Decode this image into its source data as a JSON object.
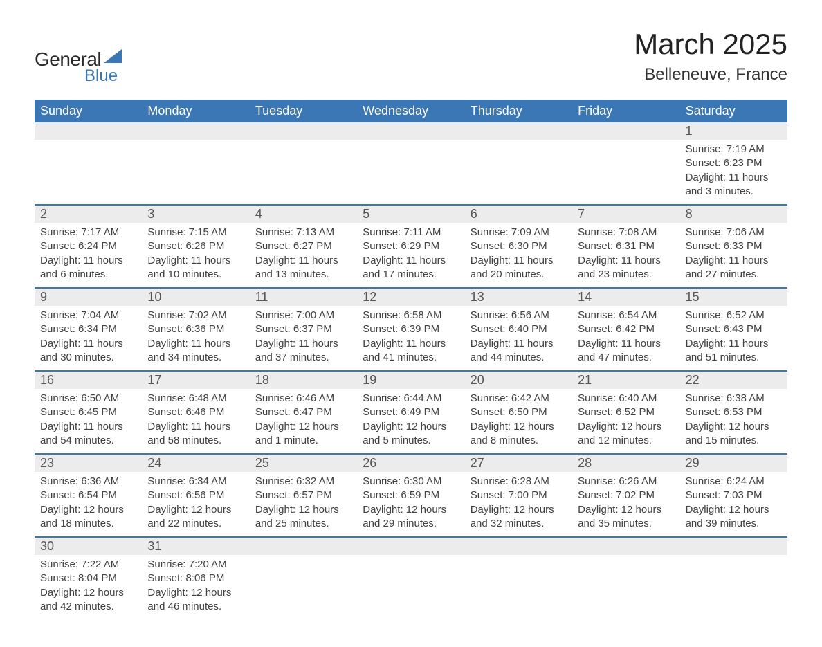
{
  "logo": {
    "general": "General",
    "blue": "Blue"
  },
  "title": "March 2025",
  "location": "Belleneuve, France",
  "colors": {
    "header_bg": "#3b77b5",
    "header_text": "#ffffff",
    "daynum_bg": "#ececec",
    "row_divider": "#3b77b5",
    "body_text": "#404040",
    "logo_blue": "#3b77b5",
    "logo_dark": "#2a2a2a",
    "background": "#ffffff"
  },
  "typography": {
    "title_fontsize": 42,
    "location_fontsize": 24,
    "dow_fontsize": 18,
    "daynum_fontsize": 18,
    "body_fontsize": 15
  },
  "days_of_week": [
    "Sunday",
    "Monday",
    "Tuesday",
    "Wednesday",
    "Thursday",
    "Friday",
    "Saturday"
  ],
  "weeks": [
    [
      {
        "n": "",
        "lines": [
          "",
          "",
          "",
          ""
        ]
      },
      {
        "n": "",
        "lines": [
          "",
          "",
          "",
          ""
        ]
      },
      {
        "n": "",
        "lines": [
          "",
          "",
          "",
          ""
        ]
      },
      {
        "n": "",
        "lines": [
          "",
          "",
          "",
          ""
        ]
      },
      {
        "n": "",
        "lines": [
          "",
          "",
          "",
          ""
        ]
      },
      {
        "n": "",
        "lines": [
          "",
          "",
          "",
          ""
        ]
      },
      {
        "n": "1",
        "lines": [
          "Sunrise: 7:19 AM",
          "Sunset: 6:23 PM",
          "Daylight: 11 hours",
          "and 3 minutes."
        ]
      }
    ],
    [
      {
        "n": "2",
        "lines": [
          "Sunrise: 7:17 AM",
          "Sunset: 6:24 PM",
          "Daylight: 11 hours",
          "and 6 minutes."
        ]
      },
      {
        "n": "3",
        "lines": [
          "Sunrise: 7:15 AM",
          "Sunset: 6:26 PM",
          "Daylight: 11 hours",
          "and 10 minutes."
        ]
      },
      {
        "n": "4",
        "lines": [
          "Sunrise: 7:13 AM",
          "Sunset: 6:27 PM",
          "Daylight: 11 hours",
          "and 13 minutes."
        ]
      },
      {
        "n": "5",
        "lines": [
          "Sunrise: 7:11 AM",
          "Sunset: 6:29 PM",
          "Daylight: 11 hours",
          "and 17 minutes."
        ]
      },
      {
        "n": "6",
        "lines": [
          "Sunrise: 7:09 AM",
          "Sunset: 6:30 PM",
          "Daylight: 11 hours",
          "and 20 minutes."
        ]
      },
      {
        "n": "7",
        "lines": [
          "Sunrise: 7:08 AM",
          "Sunset: 6:31 PM",
          "Daylight: 11 hours",
          "and 23 minutes."
        ]
      },
      {
        "n": "8",
        "lines": [
          "Sunrise: 7:06 AM",
          "Sunset: 6:33 PM",
          "Daylight: 11 hours",
          "and 27 minutes."
        ]
      }
    ],
    [
      {
        "n": "9",
        "lines": [
          "Sunrise: 7:04 AM",
          "Sunset: 6:34 PM",
          "Daylight: 11 hours",
          "and 30 minutes."
        ]
      },
      {
        "n": "10",
        "lines": [
          "Sunrise: 7:02 AM",
          "Sunset: 6:36 PM",
          "Daylight: 11 hours",
          "and 34 minutes."
        ]
      },
      {
        "n": "11",
        "lines": [
          "Sunrise: 7:00 AM",
          "Sunset: 6:37 PM",
          "Daylight: 11 hours",
          "and 37 minutes."
        ]
      },
      {
        "n": "12",
        "lines": [
          "Sunrise: 6:58 AM",
          "Sunset: 6:39 PM",
          "Daylight: 11 hours",
          "and 41 minutes."
        ]
      },
      {
        "n": "13",
        "lines": [
          "Sunrise: 6:56 AM",
          "Sunset: 6:40 PM",
          "Daylight: 11 hours",
          "and 44 minutes."
        ]
      },
      {
        "n": "14",
        "lines": [
          "Sunrise: 6:54 AM",
          "Sunset: 6:42 PM",
          "Daylight: 11 hours",
          "and 47 minutes."
        ]
      },
      {
        "n": "15",
        "lines": [
          "Sunrise: 6:52 AM",
          "Sunset: 6:43 PM",
          "Daylight: 11 hours",
          "and 51 minutes."
        ]
      }
    ],
    [
      {
        "n": "16",
        "lines": [
          "Sunrise: 6:50 AM",
          "Sunset: 6:45 PM",
          "Daylight: 11 hours",
          "and 54 minutes."
        ]
      },
      {
        "n": "17",
        "lines": [
          "Sunrise: 6:48 AM",
          "Sunset: 6:46 PM",
          "Daylight: 11 hours",
          "and 58 minutes."
        ]
      },
      {
        "n": "18",
        "lines": [
          "Sunrise: 6:46 AM",
          "Sunset: 6:47 PM",
          "Daylight: 12 hours",
          "and 1 minute."
        ]
      },
      {
        "n": "19",
        "lines": [
          "Sunrise: 6:44 AM",
          "Sunset: 6:49 PM",
          "Daylight: 12 hours",
          "and 5 minutes."
        ]
      },
      {
        "n": "20",
        "lines": [
          "Sunrise: 6:42 AM",
          "Sunset: 6:50 PM",
          "Daylight: 12 hours",
          "and 8 minutes."
        ]
      },
      {
        "n": "21",
        "lines": [
          "Sunrise: 6:40 AM",
          "Sunset: 6:52 PM",
          "Daylight: 12 hours",
          "and 12 minutes."
        ]
      },
      {
        "n": "22",
        "lines": [
          "Sunrise: 6:38 AM",
          "Sunset: 6:53 PM",
          "Daylight: 12 hours",
          "and 15 minutes."
        ]
      }
    ],
    [
      {
        "n": "23",
        "lines": [
          "Sunrise: 6:36 AM",
          "Sunset: 6:54 PM",
          "Daylight: 12 hours",
          "and 18 minutes."
        ]
      },
      {
        "n": "24",
        "lines": [
          "Sunrise: 6:34 AM",
          "Sunset: 6:56 PM",
          "Daylight: 12 hours",
          "and 22 minutes."
        ]
      },
      {
        "n": "25",
        "lines": [
          "Sunrise: 6:32 AM",
          "Sunset: 6:57 PM",
          "Daylight: 12 hours",
          "and 25 minutes."
        ]
      },
      {
        "n": "26",
        "lines": [
          "Sunrise: 6:30 AM",
          "Sunset: 6:59 PM",
          "Daylight: 12 hours",
          "and 29 minutes."
        ]
      },
      {
        "n": "27",
        "lines": [
          "Sunrise: 6:28 AM",
          "Sunset: 7:00 PM",
          "Daylight: 12 hours",
          "and 32 minutes."
        ]
      },
      {
        "n": "28",
        "lines": [
          "Sunrise: 6:26 AM",
          "Sunset: 7:02 PM",
          "Daylight: 12 hours",
          "and 35 minutes."
        ]
      },
      {
        "n": "29",
        "lines": [
          "Sunrise: 6:24 AM",
          "Sunset: 7:03 PM",
          "Daylight: 12 hours",
          "and 39 minutes."
        ]
      }
    ],
    [
      {
        "n": "30",
        "lines": [
          "Sunrise: 7:22 AM",
          "Sunset: 8:04 PM",
          "Daylight: 12 hours",
          "and 42 minutes."
        ]
      },
      {
        "n": "31",
        "lines": [
          "Sunrise: 7:20 AM",
          "Sunset: 8:06 PM",
          "Daylight: 12 hours",
          "and 46 minutes."
        ]
      },
      {
        "n": "",
        "lines": [
          "",
          "",
          "",
          ""
        ]
      },
      {
        "n": "",
        "lines": [
          "",
          "",
          "",
          ""
        ]
      },
      {
        "n": "",
        "lines": [
          "",
          "",
          "",
          ""
        ]
      },
      {
        "n": "",
        "lines": [
          "",
          "",
          "",
          ""
        ]
      },
      {
        "n": "",
        "lines": [
          "",
          "",
          "",
          ""
        ]
      }
    ]
  ]
}
